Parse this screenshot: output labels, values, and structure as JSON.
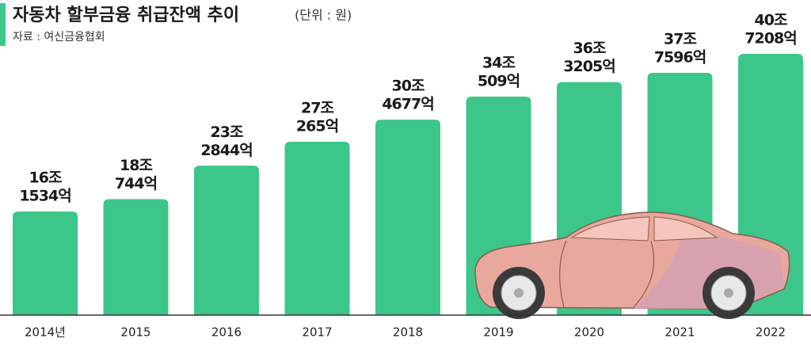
{
  "chart_data": {
    "type": "bar",
    "title": "자동차 할부금융 취급잔액 추이",
    "unit": "(단위 : 원)",
    "source": "자료 : 여신금융협회",
    "categories": [
      "2014년",
      "2015",
      "2016",
      "2017",
      "2018",
      "2019",
      "2020",
      "2021",
      "2022"
    ],
    "values": [
      161534,
      180744,
      232844,
      270265,
      304677,
      340509,
      363205,
      377596,
      407208
    ],
    "value_labels": [
      [
        "16조",
        "1534억"
      ],
      [
        "18조",
        "744억"
      ],
      [
        "23조",
        "2844억"
      ],
      [
        "27조",
        "265억"
      ],
      [
        "30조",
        "4677억"
      ],
      [
        "34조",
        "509억"
      ],
      [
        "36조",
        "3205억"
      ],
      [
        "37조",
        "7596억"
      ],
      [
        "40조",
        "7208억"
      ]
    ],
    "color": "#3cc68a"
  }
}
